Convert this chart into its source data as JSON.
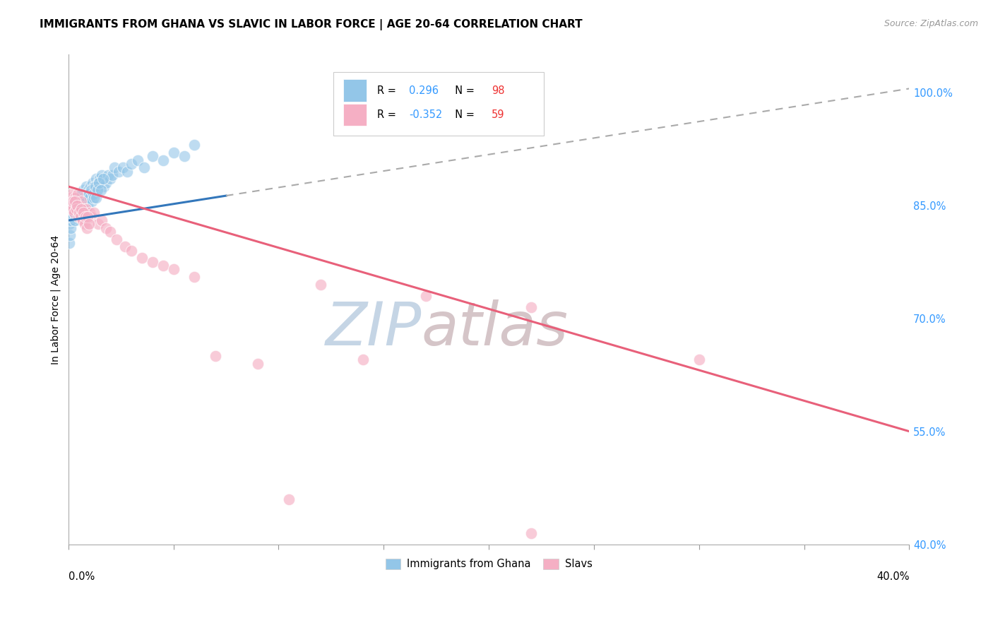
{
  "title": "IMMIGRANTS FROM GHANA VS SLAVIC IN LABOR FORCE | AGE 20-64 CORRELATION CHART",
  "source": "Source: ZipAtlas.com",
  "ylabel": "In Labor Force | Age 20-64",
  "yticks": [
    40.0,
    55.0,
    70.0,
    85.0,
    100.0
  ],
  "ytick_labels": [
    "40.0%",
    "55.0%",
    "70.0%",
    "85.0%",
    "100.0%"
  ],
  "xlim": [
    0.0,
    40.0
  ],
  "ylim": [
    40.0,
    105.0
  ],
  "r_ghana": 0.296,
  "n_ghana": 98,
  "r_slavic": -0.352,
  "n_slavic": 59,
  "blue_color": "#93c6e8",
  "pink_color": "#f5afc4",
  "blue_line_color": "#3377bb",
  "pink_line_color": "#e8607a",
  "dashed_line_color": "#aaaaaa",
  "watermark_zip_color": "#c5d5e5",
  "watermark_atlas_color": "#d5c5c8",
  "legend_label_ghana": "Immigrants from Ghana",
  "legend_label_slavic": "Slavs",
  "background_color": "#ffffff",
  "grid_color": "#dddddd",
  "ghana_scatter_x": [
    0.05,
    0.08,
    0.1,
    0.12,
    0.15,
    0.18,
    0.2,
    0.22,
    0.25,
    0.28,
    0.3,
    0.32,
    0.35,
    0.38,
    0.4,
    0.42,
    0.45,
    0.48,
    0.5,
    0.52,
    0.55,
    0.58,
    0.6,
    0.62,
    0.65,
    0.68,
    0.7,
    0.75,
    0.8,
    0.85,
    0.9,
    0.95,
    1.0,
    1.05,
    1.1,
    1.15,
    1.2,
    1.25,
    1.3,
    1.35,
    1.4,
    1.5,
    1.6,
    1.7,
    1.8,
    1.9,
    2.0,
    2.1,
    2.2,
    2.4,
    2.6,
    2.8,
    3.0,
    3.3,
    3.6,
    4.0,
    4.5,
    5.0,
    5.5,
    6.0,
    0.05,
    0.07,
    0.09,
    0.11,
    0.14,
    0.17,
    0.21,
    0.24,
    0.27,
    0.31,
    0.34,
    0.37,
    0.41,
    0.44,
    0.47,
    0.51,
    0.54,
    0.57,
    0.61,
    0.64,
    0.67,
    0.71,
    0.76,
    0.81,
    0.86,
    0.91,
    0.96,
    1.02,
    1.07,
    1.12,
    1.18,
    1.23,
    1.28,
    1.33,
    1.38,
    1.45,
    1.55,
    1.65
  ],
  "ghana_scatter_y": [
    82.5,
    83.0,
    83.5,
    84.0,
    84.5,
    84.0,
    83.5,
    85.0,
    84.0,
    83.0,
    84.5,
    85.0,
    83.5,
    84.0,
    85.5,
    84.5,
    85.0,
    84.0,
    85.5,
    86.0,
    85.0,
    84.5,
    86.0,
    85.5,
    86.5,
    85.0,
    87.0,
    86.0,
    85.5,
    87.5,
    86.5,
    87.0,
    86.0,
    87.5,
    87.0,
    88.0,
    87.5,
    87.0,
    88.5,
    87.0,
    88.0,
    88.5,
    89.0,
    87.5,
    88.0,
    89.0,
    88.5,
    89.0,
    90.0,
    89.5,
    90.0,
    89.5,
    90.5,
    91.0,
    90.0,
    91.5,
    91.0,
    92.0,
    91.5,
    93.0,
    80.0,
    81.0,
    82.0,
    83.0,
    84.0,
    83.5,
    84.5,
    85.0,
    84.0,
    83.0,
    84.5,
    85.5,
    85.0,
    84.5,
    85.0,
    86.0,
    85.5,
    84.0,
    86.5,
    85.0,
    85.5,
    86.0,
    84.5,
    85.5,
    86.0,
    85.0,
    86.5,
    86.0,
    87.0,
    85.5,
    86.5,
    86.0,
    87.5,
    86.0,
    87.0,
    88.0,
    87.0,
    88.5
  ],
  "slavic_scatter_x": [
    0.05,
    0.08,
    0.1,
    0.15,
    0.2,
    0.25,
    0.3,
    0.35,
    0.4,
    0.45,
    0.5,
    0.55,
    0.6,
    0.65,
    0.7,
    0.75,
    0.8,
    0.85,
    0.9,
    1.0,
    1.1,
    1.2,
    1.4,
    1.6,
    1.8,
    2.0,
    2.3,
    2.7,
    3.0,
    3.5,
    4.0,
    4.5,
    5.0,
    6.0,
    7.0,
    9.0,
    12.0,
    17.0,
    22.0,
    30.0,
    0.12,
    0.18,
    0.22,
    0.28,
    0.32,
    0.38,
    0.42,
    0.48,
    0.52,
    0.58,
    0.62,
    0.68,
    0.72,
    0.78,
    0.82,
    0.88,
    0.92,
    0.98,
    14.0
  ],
  "slavic_scatter_y": [
    85.5,
    86.0,
    86.5,
    85.0,
    84.5,
    85.5,
    86.0,
    85.0,
    84.5,
    86.5,
    85.0,
    84.0,
    85.5,
    83.5,
    84.0,
    84.5,
    83.0,
    84.5,
    83.5,
    84.0,
    83.5,
    84.0,
    82.5,
    83.0,
    82.0,
    81.5,
    80.5,
    79.5,
    79.0,
    78.0,
    77.5,
    77.0,
    76.5,
    75.5,
    65.0,
    64.0,
    74.5,
    73.0,
    71.5,
    64.5,
    85.0,
    84.5,
    85.5,
    84.0,
    85.5,
    84.5,
    85.0,
    83.5,
    84.0,
    83.5,
    84.5,
    83.0,
    84.0,
    82.5,
    83.5,
    82.0,
    83.5,
    82.5,
    64.5
  ],
  "slavic_outlier1_x": 10.5,
  "slavic_outlier1_y": 46.0,
  "slavic_outlier2_x": 22.0,
  "slavic_outlier2_y": 41.5,
  "ghana_line_x0": 0.0,
  "ghana_line_y0": 83.0,
  "ghana_line_x1": 40.0,
  "ghana_line_y1": 100.5,
  "ghana_solid_end": 7.5,
  "slavic_line_x0": 0.0,
  "slavic_line_y0": 87.5,
  "slavic_line_x1": 40.0,
  "slavic_line_y1": 55.0
}
